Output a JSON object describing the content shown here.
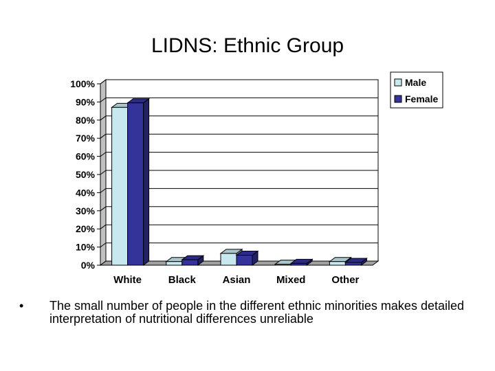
{
  "title": "LIDNS: Ethnic Group",
  "bullet": {
    "marker": "•",
    "text": "The small number of people in the different ethnic minorities makes detailed interpretation of nutritional differences unreliable"
  },
  "chart_data": {
    "type": "bar",
    "categories": [
      "White",
      "Black",
      "Asian",
      "Mixed",
      "Other"
    ],
    "series": [
      {
        "name": "Male",
        "values": [
          87,
          2,
          6.5,
          0.5,
          2
        ],
        "color": "#c8e8f0"
      },
      {
        "name": "Female",
        "values": [
          89.5,
          3,
          5.5,
          1,
          1.5
        ],
        "color": "#33339a"
      }
    ],
    "ylim": [
      0,
      100
    ],
    "yticks": [
      0,
      10,
      20,
      30,
      40,
      50,
      60,
      70,
      80,
      90,
      100
    ],
    "ytick_suffix": "%",
    "grid": true,
    "legend": "top-right",
    "style": "3d-clustered-column"
  }
}
